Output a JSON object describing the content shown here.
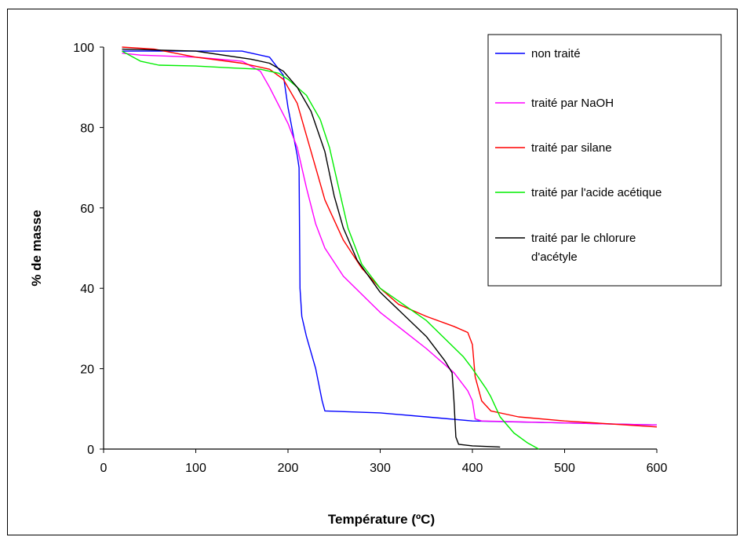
{
  "chart_data": {
    "type": "line",
    "xlabel": "Température (ºC)",
    "ylabel": "% de masse",
    "xlim": [
      0,
      600
    ],
    "ylim": [
      0,
      100
    ],
    "x_ticks": [
      "0",
      "100",
      "200",
      "300",
      "400",
      "500",
      "600"
    ],
    "y_ticks": [
      "0",
      "20",
      "40",
      "60",
      "80",
      "100"
    ],
    "grid": false,
    "legend_position": "top-right",
    "series": [
      {
        "name": "non traité",
        "color": "#0000ff",
        "points": [
          [
            20,
            99
          ],
          [
            100,
            99
          ],
          [
            150,
            99
          ],
          [
            180,
            97.5
          ],
          [
            195,
            93
          ],
          [
            200,
            85
          ],
          [
            205,
            79
          ],
          [
            210,
            73
          ],
          [
            212,
            70
          ],
          [
            213,
            40
          ],
          [
            215,
            33
          ],
          [
            220,
            28
          ],
          [
            230,
            20
          ],
          [
            237,
            12
          ],
          [
            240,
            9.5
          ],
          [
            300,
            9
          ],
          [
            350,
            8
          ],
          [
            400,
            7
          ],
          [
            500,
            6.5
          ],
          [
            600,
            6
          ]
        ]
      },
      {
        "name": "traité par NaOH",
        "color": "#ff00ff",
        "points": [
          [
            20,
            98.5
          ],
          [
            40,
            98
          ],
          [
            100,
            97.5
          ],
          [
            150,
            96.5
          ],
          [
            170,
            94
          ],
          [
            180,
            90
          ],
          [
            200,
            81
          ],
          [
            210,
            75
          ],
          [
            220,
            65
          ],
          [
            230,
            56
          ],
          [
            240,
            50
          ],
          [
            260,
            43
          ],
          [
            300,
            34
          ],
          [
            350,
            25
          ],
          [
            380,
            19
          ],
          [
            395,
            14.5
          ],
          [
            400,
            12
          ],
          [
            403,
            7.5
          ],
          [
            410,
            7
          ],
          [
            500,
            6.5
          ],
          [
            600,
            6
          ]
        ]
      },
      {
        "name": "traité par silane",
        "color": "#ff0000",
        "points": [
          [
            20,
            100
          ],
          [
            55,
            99.5
          ],
          [
            100,
            97.5
          ],
          [
            150,
            96
          ],
          [
            180,
            94.5
          ],
          [
            195,
            92
          ],
          [
            210,
            86
          ],
          [
            220,
            78
          ],
          [
            230,
            70
          ],
          [
            240,
            62
          ],
          [
            260,
            52
          ],
          [
            280,
            45
          ],
          [
            300,
            40
          ],
          [
            320,
            36
          ],
          [
            350,
            33
          ],
          [
            380,
            30.5
          ],
          [
            395,
            29
          ],
          [
            400,
            26
          ],
          [
            403,
            18
          ],
          [
            410,
            12
          ],
          [
            420,
            9.5
          ],
          [
            450,
            8
          ],
          [
            500,
            7
          ],
          [
            600,
            5.5
          ]
        ]
      },
      {
        "name": "traité par l'acide acétique",
        "color": "#00ee00",
        "points": [
          [
            20,
            99
          ],
          [
            40,
            96.5
          ],
          [
            60,
            95.5
          ],
          [
            100,
            95.3
          ],
          [
            140,
            94.8
          ],
          [
            170,
            94.5
          ],
          [
            190,
            93.5
          ],
          [
            200,
            92
          ],
          [
            210,
            90
          ],
          [
            220,
            88
          ],
          [
            235,
            82
          ],
          [
            245,
            75
          ],
          [
            255,
            65
          ],
          [
            265,
            55
          ],
          [
            280,
            46
          ],
          [
            300,
            40
          ],
          [
            350,
            32
          ],
          [
            390,
            23
          ],
          [
            400,
            20
          ],
          [
            415,
            15
          ],
          [
            420,
            13
          ],
          [
            430,
            8
          ],
          [
            445,
            4
          ],
          [
            460,
            1.5
          ],
          [
            472,
            0
          ]
        ]
      },
      {
        "name": "traité par le chlorure d'acétyle",
        "color": "#000000",
        "points": [
          [
            20,
            99.5
          ],
          [
            100,
            99
          ],
          [
            160,
            97
          ],
          [
            180,
            96
          ],
          [
            195,
            94
          ],
          [
            210,
            90
          ],
          [
            225,
            84
          ],
          [
            240,
            74
          ],
          [
            250,
            63
          ],
          [
            260,
            55
          ],
          [
            275,
            47
          ],
          [
            300,
            39
          ],
          [
            350,
            28
          ],
          [
            370,
            22
          ],
          [
            378,
            19
          ],
          [
            380,
            12
          ],
          [
            382,
            3
          ],
          [
            385,
            1.2
          ],
          [
            400,
            0.8
          ],
          [
            430,
            0.5
          ]
        ]
      }
    ]
  }
}
